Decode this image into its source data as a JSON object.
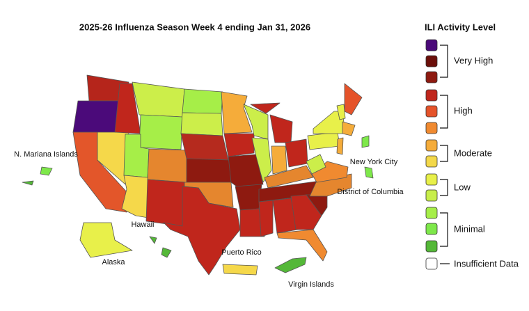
{
  "title": "2025-26 Influenza Season Week 4 ending Jan 31, 2026",
  "legend": {
    "title": "ILI Activity Level",
    "levels": [
      "#4b0a7a",
      "#6b0f0a",
      "#8e1a10",
      "#c0261c",
      "#e5532a",
      "#f08a30",
      "#f5ac3a",
      "#f3d84a",
      "#e8f04a",
      "#c8ee4a",
      "#a6ee48",
      "#7ee84a",
      "#54b838",
      "#ffffff"
    ],
    "groups": [
      "Very High",
      "High",
      "Moderate",
      "Low",
      "Minimal",
      "Insufficient Data"
    ]
  },
  "region_labels": [
    "N. Mariana Islands",
    "New York City",
    "District of Columbia",
    "Hawaii",
    "Alaska",
    "Puerto Rico",
    "Virgin Islands"
  ]
}
